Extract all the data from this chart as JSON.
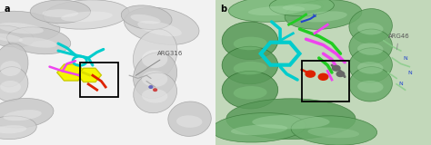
{
  "fig_width": 4.74,
  "fig_height": 1.6,
  "dpi": 100,
  "panel_a_label": "a",
  "panel_b_label": "b",
  "label_fontsize": 7,
  "label_fontweight": "bold",
  "panel_a": {
    "bg": "#e8e8e8",
    "helix_ribbon_color": "#c8c8c8",
    "helix_shadow": "#a0a0a0",
    "helix_highlight": "#f0f0f0",
    "lig_yellow": "#f5f500",
    "lig_cyan": "#00cccc",
    "lig_magenta": "#ee44ee",
    "lig_red": "#dd2200",
    "lig_pink": "#ffaaaa",
    "box_color": "#111111",
    "arg_label": "ARG316",
    "arg_label_fontsize": 5,
    "arg_label_color": "#555555"
  },
  "panel_b": {
    "bg": "#b8d4b0",
    "helix_ribbon_color": "#6aaa6a",
    "helix_shadow": "#3a7a3a",
    "helix_highlight": "#aadaaa",
    "lig_cyan": "#00cccc",
    "lig_magenta": "#ee44ee",
    "lig_green": "#22cc22",
    "lig_red": "#dd2200",
    "lig_gray": "#666666",
    "box_color": "#111111",
    "arg_label": "ARG46",
    "arg_label_fontsize": 5,
    "arg_label_color": "#555555"
  }
}
